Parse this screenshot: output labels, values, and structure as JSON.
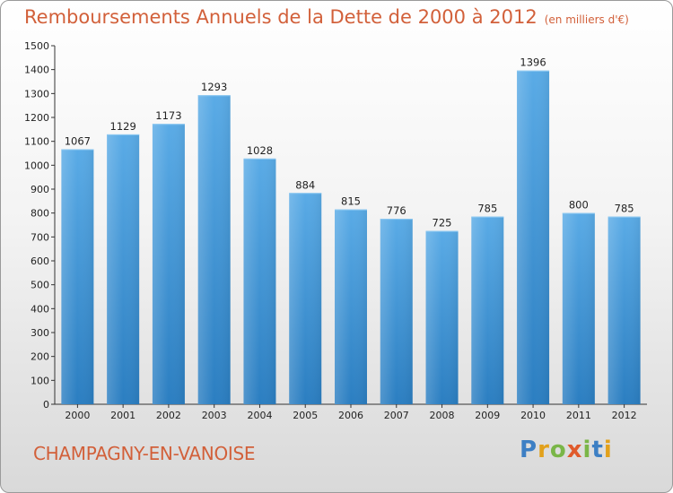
{
  "header": {
    "title": "Remboursements Annuels de la Dette de 2000 à 2012",
    "unit": "(en milliers d'€)"
  },
  "footer": {
    "commune": "CHAMPAGNY-EN-VANOISE",
    "logo": {
      "p": "P",
      "r": "r",
      "o": "o",
      "x": "x",
      "i1": "i",
      "t": "t",
      "i2": "i"
    }
  },
  "colors": {
    "title": "#d2603a",
    "bar_light": "#5aabe6",
    "bar_dark": "#2b7ec1"
  },
  "chart_data": {
    "type": "bar",
    "categories": [
      "2000",
      "2001",
      "2002",
      "2003",
      "2004",
      "2005",
      "2006",
      "2007",
      "2008",
      "2009",
      "2010",
      "2011",
      "2012"
    ],
    "values": [
      1067,
      1129,
      1173,
      1293,
      1028,
      884,
      815,
      776,
      725,
      785,
      1396,
      800,
      785
    ],
    "ylim": [
      0,
      1500
    ],
    "yticks": [
      0,
      100,
      200,
      300,
      400,
      500,
      600,
      700,
      800,
      900,
      1000,
      1100,
      1200,
      1300,
      1400,
      1500
    ],
    "grid": false
  }
}
